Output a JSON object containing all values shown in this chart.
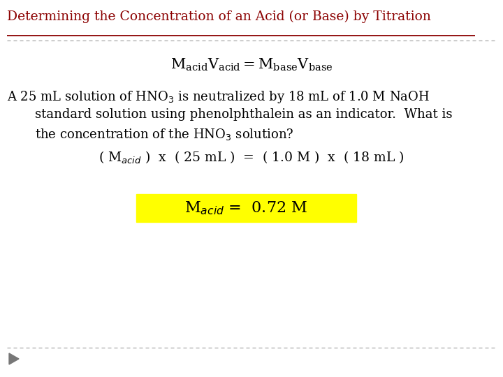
{
  "title": "Determining the Concentration of an Acid (or Base) by Titration",
  "title_color": "#8B0000",
  "bg_color": "#FFFFFF",
  "dashed_line_color": "#AAAAAA",
  "highlight_color": "#FFFF00",
  "text_color": "#000000",
  "figsize": [
    7.2,
    5.4
  ],
  "dpi": 100,
  "formula": "M_{acid}V_{acid} = M_{base}V_{base}",
  "para_line1": "A 25 mL solution of HNO$_3$ is neutralized by 18 mL of 1.0 M NaOH",
  "para_line2": "standard solution using phenolphthalein as an indicator.  What is",
  "para_line3": "the concentration of the HNO$_3$ solution?",
  "eq_line": "( M$_{acid}$ )  x  ( 25 mL )  =  ( 1.0 M )  x  ( 18 mL )",
  "result": "M$_{acid}$ =  0.72 M"
}
